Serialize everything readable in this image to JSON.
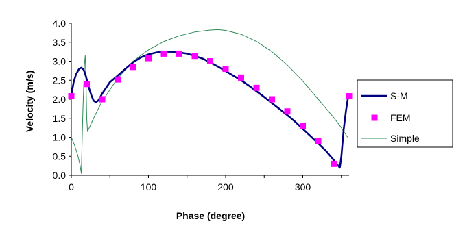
{
  "chart_data": {
    "type": "line",
    "title": "",
    "xlabel": "Phase (degree)",
    "ylabel": "Velocity (m/s)",
    "xlim": [
      0,
      360
    ],
    "ylim": [
      0.0,
      4.0
    ],
    "x_ticks": [
      0,
      100,
      200,
      300
    ],
    "x_tick_labels": [
      "0",
      "100",
      "200",
      "300"
    ],
    "y_ticks": [
      0.0,
      0.5,
      1.0,
      1.5,
      2.0,
      2.5,
      3.0,
      3.5,
      4.0
    ],
    "y_tick_labels": [
      "0.0",
      "0.5",
      "1.0",
      "1.5",
      "2.0",
      "2.5",
      "3.0",
      "3.5",
      "4.0"
    ],
    "grid": false,
    "legend_position": "right",
    "series": [
      {
        "name": "S-M",
        "style": "line",
        "color": "#000080",
        "points": [
          [
            0,
            2.1
          ],
          [
            3,
            2.45
          ],
          [
            6,
            2.65
          ],
          [
            10,
            2.8
          ],
          [
            13,
            2.83
          ],
          [
            16,
            2.78
          ],
          [
            19,
            2.6
          ],
          [
            22,
            2.35
          ],
          [
            26,
            2.1
          ],
          [
            29,
            1.96
          ],
          [
            32,
            1.92
          ],
          [
            35,
            1.97
          ],
          [
            40,
            2.15
          ],
          [
            50,
            2.45
          ],
          [
            60,
            2.62
          ],
          [
            70,
            2.8
          ],
          [
            80,
            2.97
          ],
          [
            90,
            3.1
          ],
          [
            100,
            3.18
          ],
          [
            110,
            3.23
          ],
          [
            120,
            3.25
          ],
          [
            130,
            3.25
          ],
          [
            140,
            3.23
          ],
          [
            150,
            3.2
          ],
          [
            160,
            3.14
          ],
          [
            170,
            3.07
          ],
          [
            180,
            2.97
          ],
          [
            190,
            2.86
          ],
          [
            200,
            2.74
          ],
          [
            210,
            2.62
          ],
          [
            220,
            2.5
          ],
          [
            230,
            2.36
          ],
          [
            240,
            2.21
          ],
          [
            250,
            2.06
          ],
          [
            260,
            1.9
          ],
          [
            270,
            1.74
          ],
          [
            280,
            1.58
          ],
          [
            290,
            1.41
          ],
          [
            300,
            1.22
          ],
          [
            310,
            1.03
          ],
          [
            320,
            0.84
          ],
          [
            330,
            0.64
          ],
          [
            338,
            0.45
          ],
          [
            344,
            0.3
          ],
          [
            348,
            0.2
          ],
          [
            350,
            0.5
          ],
          [
            353,
            1.2
          ],
          [
            356,
            1.7
          ],
          [
            359,
            2.1
          ]
        ]
      },
      {
        "name": "FEM",
        "style": "marker",
        "color": "#ff00ff",
        "points": [
          [
            0,
            2.08
          ],
          [
            20,
            2.4
          ],
          [
            40,
            2.0
          ],
          [
            60,
            2.52
          ],
          [
            80,
            2.85
          ],
          [
            100,
            3.08
          ],
          [
            120,
            3.2
          ],
          [
            140,
            3.2
          ],
          [
            160,
            3.14
          ],
          [
            180,
            3.0
          ],
          [
            200,
            2.8
          ],
          [
            220,
            2.57
          ],
          [
            240,
            2.3
          ],
          [
            260,
            2.0
          ],
          [
            280,
            1.68
          ],
          [
            300,
            1.3
          ],
          [
            320,
            0.9
          ],
          [
            340,
            0.3
          ],
          [
            360,
            2.08
          ]
        ]
      },
      {
        "name": "Simple",
        "style": "line",
        "color": "#2e8b57",
        "points": [
          [
            0,
            1.0
          ],
          [
            4,
            0.8
          ],
          [
            8,
            0.55
          ],
          [
            11,
            0.3
          ],
          [
            13,
            0.05
          ],
          [
            15,
            1.7
          ],
          [
            17,
            2.9
          ],
          [
            18,
            3.15
          ],
          [
            19,
            2.5
          ],
          [
            20,
            1.5
          ],
          [
            21,
            1.15
          ],
          [
            30,
            1.55
          ],
          [
            40,
            1.95
          ],
          [
            60,
            2.55
          ],
          [
            80,
            3.0
          ],
          [
            100,
            3.3
          ],
          [
            120,
            3.52
          ],
          [
            140,
            3.67
          ],
          [
            160,
            3.77
          ],
          [
            180,
            3.82
          ],
          [
            190,
            3.83
          ],
          [
            200,
            3.81
          ],
          [
            220,
            3.71
          ],
          [
            240,
            3.52
          ],
          [
            260,
            3.25
          ],
          [
            280,
            2.9
          ],
          [
            300,
            2.48
          ],
          [
            320,
            2.0
          ],
          [
            340,
            1.52
          ],
          [
            350,
            1.25
          ],
          [
            358,
            1.0
          ]
        ]
      }
    ]
  }
}
